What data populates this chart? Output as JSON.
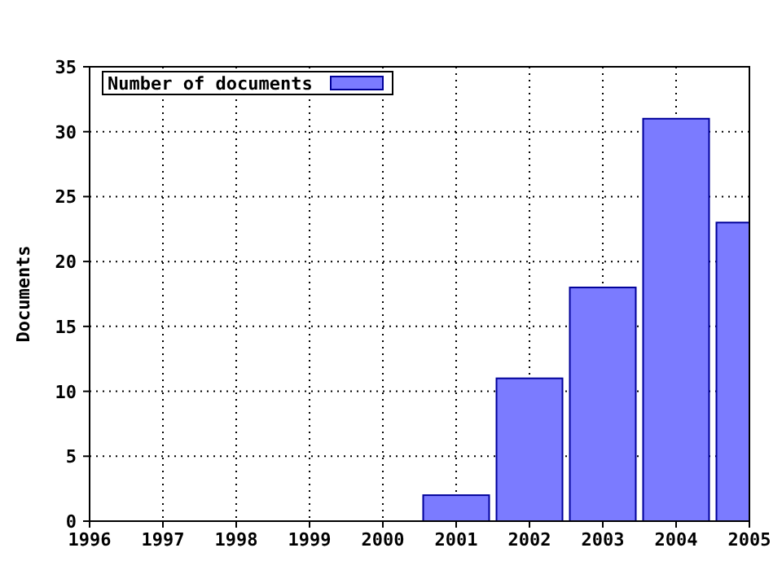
{
  "chart_data": {
    "type": "bar",
    "ylabel": "Documents",
    "x": [
      2001,
      2002,
      2003,
      2004,
      2005
    ],
    "series": [
      {
        "name": "Number of documents",
        "color": "#7b7bff",
        "values": [
          2,
          11,
          18,
          31,
          23
        ]
      }
    ],
    "xlim": [
      1996,
      2005
    ],
    "xticks": [
      1996,
      1997,
      1998,
      1999,
      2000,
      2001,
      2002,
      2003,
      2004,
      2005
    ],
    "ylim": [
      0,
      35
    ],
    "yticks": [
      0,
      5,
      10,
      15,
      20,
      25,
      30,
      35
    ],
    "grid": true,
    "legend": "top left"
  }
}
